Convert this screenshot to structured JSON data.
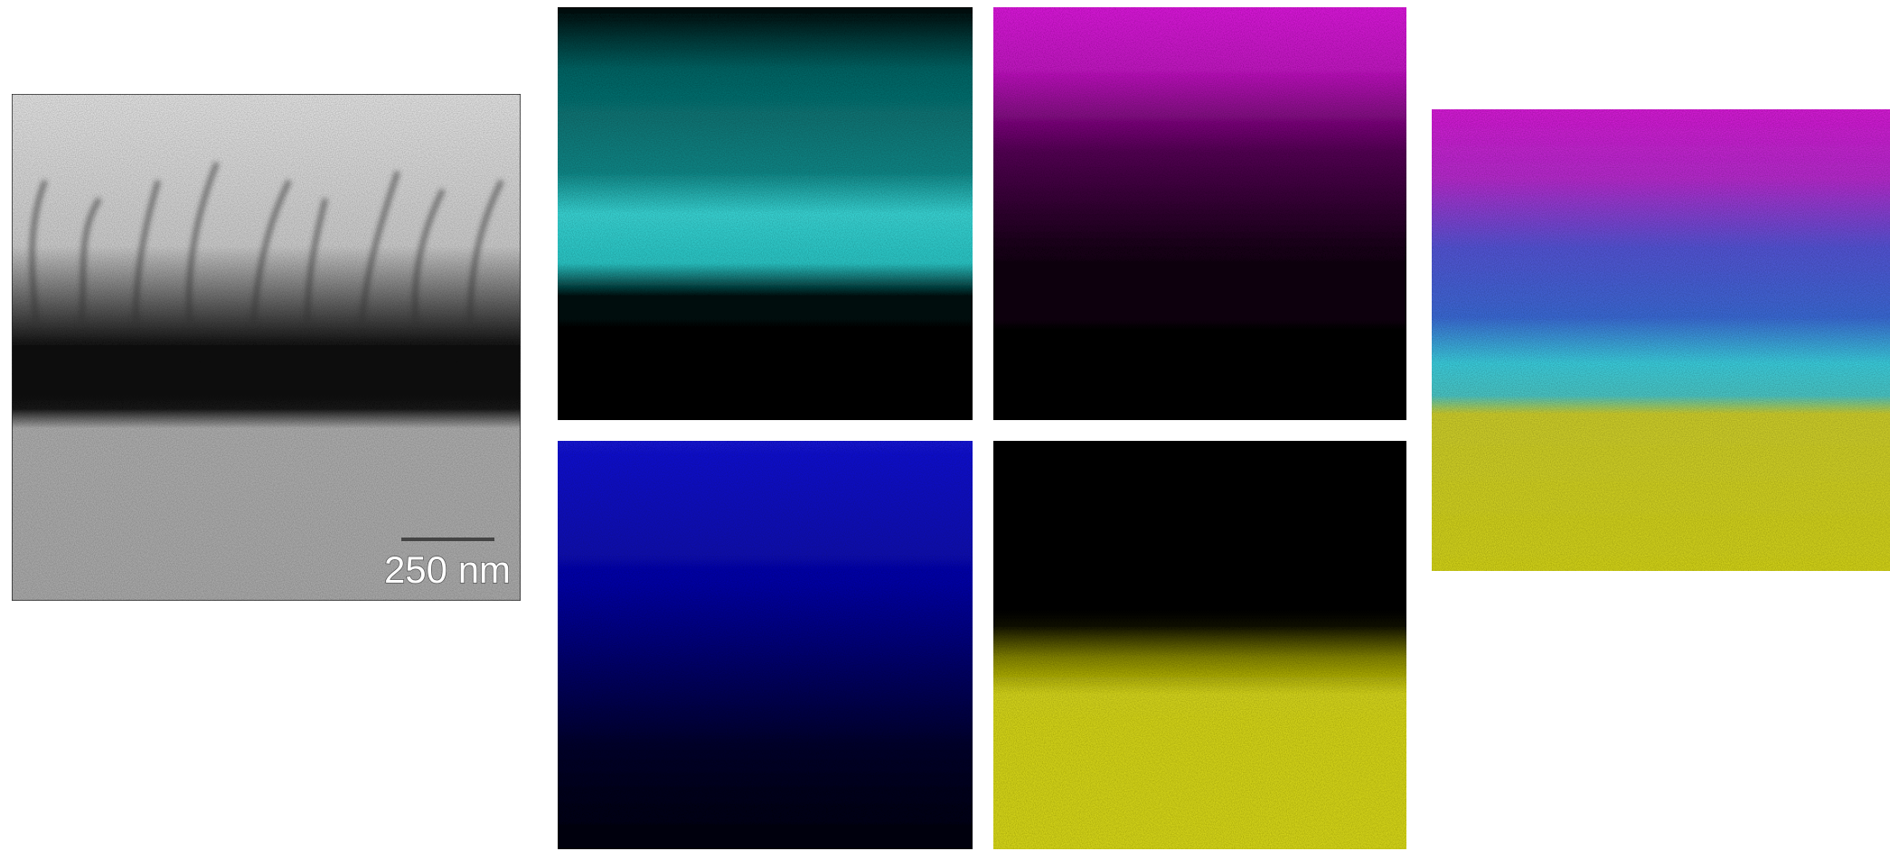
{
  "scale_bar": {
    "label": "250 nm"
  }
}
